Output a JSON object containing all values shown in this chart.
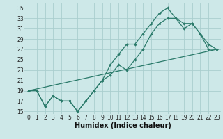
{
  "xlabel": "Humidex (Indice chaleur)",
  "bg_color": "#cde8e8",
  "grid_color": "#aacece",
  "line_color": "#2a7a6a",
  "xlim": [
    -0.5,
    23.5
  ],
  "ylim": [
    14.5,
    36.0
  ],
  "xticks": [
    0,
    1,
    2,
    3,
    4,
    5,
    6,
    7,
    8,
    9,
    10,
    11,
    12,
    13,
    14,
    15,
    16,
    17,
    18,
    19,
    20,
    21,
    22,
    23
  ],
  "yticks": [
    15,
    17,
    19,
    21,
    23,
    25,
    27,
    29,
    31,
    33,
    35
  ],
  "line1": [
    19,
    19,
    16,
    18,
    17,
    17,
    15,
    17,
    19,
    21,
    24,
    26,
    28,
    28,
    30,
    32,
    34,
    35,
    33,
    32,
    32,
    30,
    28,
    27
  ],
  "line2": [
    19,
    19,
    16,
    18,
    17,
    17,
    15,
    17,
    19,
    21,
    22,
    24,
    23,
    25,
    27,
    30,
    32,
    33,
    33,
    31,
    32,
    30,
    27,
    27
  ],
  "line3_x": [
    0,
    23
  ],
  "line3_y": [
    19,
    27
  ],
  "xlabel_fontsize": 7,
  "tick_fontsize": 5.5
}
